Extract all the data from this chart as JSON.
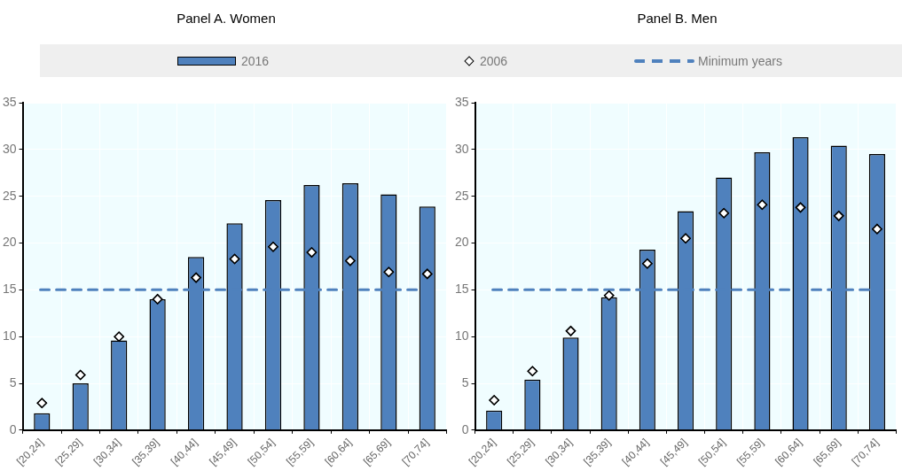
{
  "chart_data": [
    {
      "type": "bar",
      "title": "Panel A. Women",
      "categories": [
        "[20,24]",
        "[25,29]",
        "[30,34]",
        "[35,39]",
        "[40,44]",
        "[45,49]",
        "[50,54]",
        "[55,59]",
        "[60,64]",
        "[65,69]",
        "[70,74]"
      ],
      "series": [
        {
          "name": "2016",
          "color": "#4f81bd",
          "values": [
            1.8,
            5.0,
            9.6,
            14.0,
            18.5,
            22.1,
            24.6,
            26.2,
            26.4,
            25.2,
            23.9
          ]
        },
        {
          "name": "2006",
          "type": "scatter",
          "marker": "diamond",
          "color": "#ffffff",
          "values": [
            2.9,
            5.9,
            10.0,
            14.0,
            16.3,
            18.3,
            19.6,
            19.0,
            18.1,
            16.9,
            16.7
          ]
        }
      ],
      "ref_lines": [
        {
          "axis": "y",
          "value": 15,
          "label": "Minimum years",
          "color": "#4f81bd",
          "line_style": "dashed"
        }
      ],
      "ylim": [
        0,
        35
      ],
      "yticks": [
        0,
        5,
        10,
        15,
        20,
        25,
        30,
        35
      ],
      "grid": true,
      "legend": "top"
    },
    {
      "type": "bar",
      "title": "Panel B. Men",
      "categories": [
        "[20,24]",
        "[25,29]",
        "[30,34]",
        "[35,39]",
        "[40,44]",
        "[45,49]",
        "[50,54]",
        "[55,59]",
        "[60,64]",
        "[65,69]",
        "[70,74]"
      ],
      "series": [
        {
          "color": "#4f81bd",
          "values": [
            2.1,
            5.4,
            9.9,
            14.2,
            19.3,
            23.4,
            27.0,
            29.7,
            31.3,
            30.4,
            29.5
          ]
        },
        {
          "type": "scatter",
          "marker": "diamond",
          "color": "#ffffff",
          "values": [
            3.2,
            6.3,
            10.6,
            14.4,
            17.8,
            20.5,
            23.2,
            24.1,
            23.8,
            22.9,
            21.5
          ]
        }
      ],
      "ref_lines": [
        {
          "axis": "y",
          "value": 15,
          "color": "#4f81bd",
          "line_style": "dashed"
        }
      ],
      "ylim": [
        0,
        35
      ],
      "yticks": [
        0,
        5,
        10,
        15,
        20,
        25,
        30,
        35
      ],
      "grid": true
    }
  ]
}
